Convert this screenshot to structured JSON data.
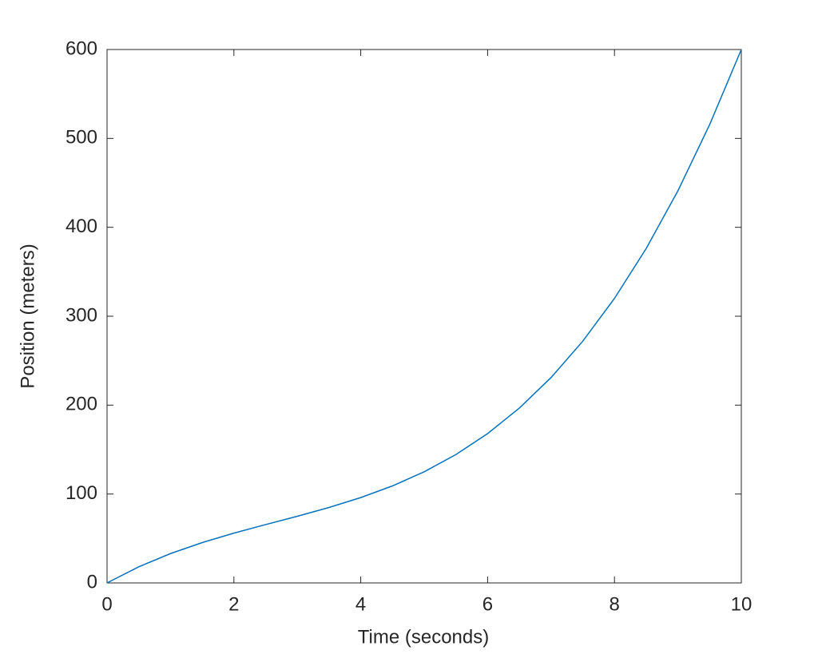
{
  "chart_data": {
    "type": "line",
    "x_label": "Time (seconds)",
    "y_label": "Position (meters)",
    "x": [
      0,
      0.5,
      1,
      1.5,
      2,
      2.5,
      3,
      3.5,
      4,
      4.5,
      5,
      5.5,
      6,
      6.5,
      7,
      7.5,
      8,
      8.5,
      9,
      9.5,
      10
    ],
    "series": [
      {
        "color": "#0072bd",
        "values": [
          0,
          18.125,
          33,
          45.375,
          56,
          65.625,
          75,
          84.875,
          96,
          109.125,
          125,
          144.375,
          168,
          196.625,
          231,
          271.875,
          320,
          376.125,
          441,
          515.375,
          600
        ]
      }
    ],
    "xlim": [
      0,
      10
    ],
    "xticks": [
      0,
      2,
      4,
      6,
      8,
      10
    ],
    "ylim": [
      0,
      600
    ],
    "yticks": [
      0,
      100,
      200,
      300,
      400,
      500,
      600
    ],
    "grid": false
  }
}
